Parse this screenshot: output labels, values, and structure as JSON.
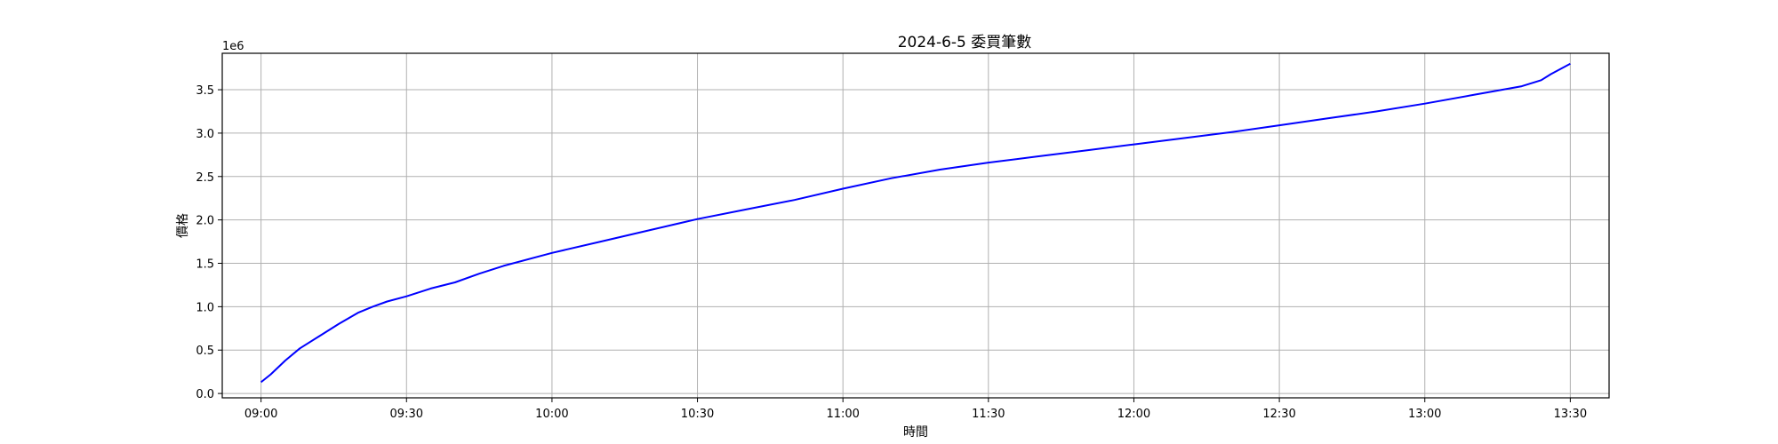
{
  "chart_data": {
    "type": "line",
    "title": "2024-6-5 委買筆數",
    "xlabel": "時間",
    "ylabel": "價格",
    "y_offset_label": "1e6",
    "y_multiplier": 1000000,
    "grid": true,
    "legend": "none",
    "xlim": [
      "08:52",
      "13:38"
    ],
    "ylim": [
      -0.05,
      3.92
    ],
    "x_ticks": [
      "09:00",
      "09:30",
      "10:00",
      "10:30",
      "11:00",
      "11:30",
      "12:00",
      "12:30",
      "13:00",
      "13:30"
    ],
    "y_ticks": [
      0.0,
      0.5,
      1.0,
      1.5,
      2.0,
      2.5,
      3.0,
      3.5
    ],
    "y_tick_labels": [
      "0.0",
      "0.5",
      "1.0",
      "1.5",
      "2.0",
      "2.5",
      "3.0",
      "3.5"
    ],
    "series": [
      {
        "color": "#0000ff",
        "x": [
          "09:00",
          "09:02",
          "09:05",
          "09:08",
          "09:12",
          "09:16",
          "09:20",
          "09:23",
          "09:26",
          "09:30",
          "09:35",
          "09:40",
          "09:45",
          "09:50",
          "10:00",
          "10:10",
          "10:20",
          "10:30",
          "10:40",
          "10:50",
          "11:00",
          "11:10",
          "11:20",
          "11:30",
          "11:40",
          "11:50",
          "12:00",
          "12:10",
          "12:20",
          "12:30",
          "12:40",
          "12:50",
          "13:00",
          "13:10",
          "13:20",
          "13:24",
          "13:26",
          "13:30"
        ],
        "y": [
          0.13,
          0.22,
          0.38,
          0.52,
          0.66,
          0.8,
          0.93,
          1.0,
          1.06,
          1.12,
          1.21,
          1.28,
          1.38,
          1.47,
          1.62,
          1.75,
          1.88,
          2.01,
          2.12,
          2.23,
          2.36,
          2.48,
          2.58,
          2.66,
          2.73,
          2.8,
          2.87,
          2.94,
          3.01,
          3.09,
          3.17,
          3.25,
          3.34,
          3.44,
          3.54,
          3.61,
          3.68,
          3.8
        ]
      }
    ]
  }
}
